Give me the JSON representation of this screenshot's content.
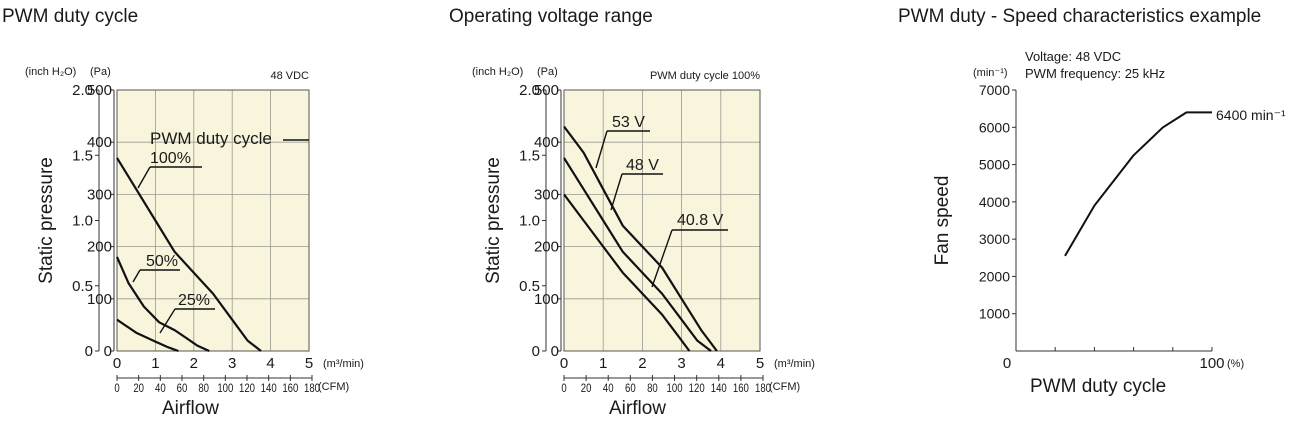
{
  "chart_data": [
    {
      "type": "line",
      "title": "PWM duty cycle",
      "condition": "48 VDC",
      "xlabel": "Airflow",
      "ylabel": "Static pressure",
      "x_unit_primary": "(m³/min)",
      "x_unit_secondary": "(CFM)",
      "y_unit_primary": "(Pa)",
      "y_unit_secondary": "(inch H₂O)",
      "xlim": [
        0,
        5
      ],
      "ylim": [
        0,
        500
      ],
      "x_ticks": [
        "0",
        "1",
        "2",
        "3",
        "4",
        "5"
      ],
      "cfm_ticks": [
        "0",
        "20",
        "40",
        "60",
        "80",
        "100",
        "120",
        "140",
        "160",
        "180"
      ],
      "y_ticks": [
        "0",
        "100",
        "200",
        "300",
        "400",
        "500"
      ],
      "y_ticks_secondary": [
        "0",
        "0.5",
        "1.0",
        "1.5",
        "2.0"
      ],
      "legend_title": "PWM duty cycle",
      "grid": true,
      "series": [
        {
          "name": "100%",
          "points": [
            [
              0,
              370
            ],
            [
              0.5,
              310
            ],
            [
              1,
              250
            ],
            [
              1.5,
              190
            ],
            [
              2,
              150
            ],
            [
              2.5,
              110
            ],
            [
              3,
              60
            ],
            [
              3.4,
              20
            ],
            [
              3.75,
              0
            ]
          ]
        },
        {
          "name": "50%",
          "points": [
            [
              0,
              180
            ],
            [
              0.3,
              130
            ],
            [
              0.7,
              85
            ],
            [
              1.1,
              55
            ],
            [
              1.5,
              40
            ],
            [
              1.8,
              25
            ],
            [
              2.1,
              10
            ],
            [
              2.4,
              0
            ]
          ]
        },
        {
          "name": "25%",
          "points": [
            [
              0,
              60
            ],
            [
              0.5,
              35
            ],
            [
              1,
              18
            ],
            [
              1.3,
              8
            ],
            [
              1.6,
              0
            ]
          ]
        }
      ]
    },
    {
      "type": "line",
      "title": "Operating voltage range",
      "condition": "PWM duty cycle 100%",
      "xlabel": "Airflow",
      "ylabel": "Static pressure",
      "x_unit_primary": "(m³/min)",
      "x_unit_secondary": "(CFM)",
      "y_unit_primary": "(Pa)",
      "y_unit_secondary": "(inch H₂O)",
      "xlim": [
        0,
        5
      ],
      "ylim": [
        0,
        500
      ],
      "x_ticks": [
        "0",
        "1",
        "2",
        "3",
        "4",
        "5"
      ],
      "cfm_ticks": [
        "0",
        "20",
        "40",
        "60",
        "80",
        "100",
        "120",
        "140",
        "160",
        "180"
      ],
      "y_ticks": [
        "0",
        "100",
        "200",
        "300",
        "400",
        "500"
      ],
      "y_ticks_secondary": [
        "0",
        "0.5",
        "1.0",
        "1.5",
        "2.0"
      ],
      "grid": true,
      "series": [
        {
          "name": "53 V",
          "points": [
            [
              0,
              430
            ],
            [
              0.5,
              380
            ],
            [
              1,
              310
            ],
            [
              1.5,
              240
            ],
            [
              2,
              200
            ],
            [
              2.5,
              160
            ],
            [
              3,
              100
            ],
            [
              3.5,
              40
            ],
            [
              3.9,
              0
            ]
          ]
        },
        {
          "name": "48 V",
          "points": [
            [
              0,
              370
            ],
            [
              0.5,
              310
            ],
            [
              1,
              250
            ],
            [
              1.5,
              190
            ],
            [
              2,
              150
            ],
            [
              2.5,
              110
            ],
            [
              3,
              60
            ],
            [
              3.4,
              20
            ],
            [
              3.75,
              0
            ]
          ]
        },
        {
          "name": "40.8 V",
          "points": [
            [
              0,
              300
            ],
            [
              0.5,
              250
            ],
            [
              1,
              200
            ],
            [
              1.5,
              150
            ],
            [
              2,
              110
            ],
            [
              2.5,
              70
            ],
            [
              2.9,
              30
            ],
            [
              3.2,
              0
            ]
          ]
        }
      ]
    },
    {
      "type": "line",
      "title": "PWM duty - Speed characteristics example",
      "conditions": [
        "Voltage: 48 VDC",
        "PWM frequency: 25 kHz"
      ],
      "xlabel": "PWM duty cycle",
      "ylabel": "Fan speed",
      "x_unit": "(%)",
      "y_unit": "(min⁻¹)",
      "xlim": [
        0,
        100
      ],
      "ylim": [
        0,
        7000
      ],
      "x_ticks": [
        "0",
        "100"
      ],
      "y_ticks": [
        "1000",
        "2000",
        "3000",
        "4000",
        "5000",
        "6000",
        "7000"
      ],
      "grid": false,
      "annotation": "6400 min⁻¹",
      "series": [
        {
          "name": "",
          "points": [
            [
              25,
              2550
            ],
            [
              40,
              3900
            ],
            [
              60,
              5250
            ],
            [
              75,
              6000
            ],
            [
              87,
              6400
            ],
            [
              100,
              6400
            ]
          ]
        }
      ]
    }
  ]
}
